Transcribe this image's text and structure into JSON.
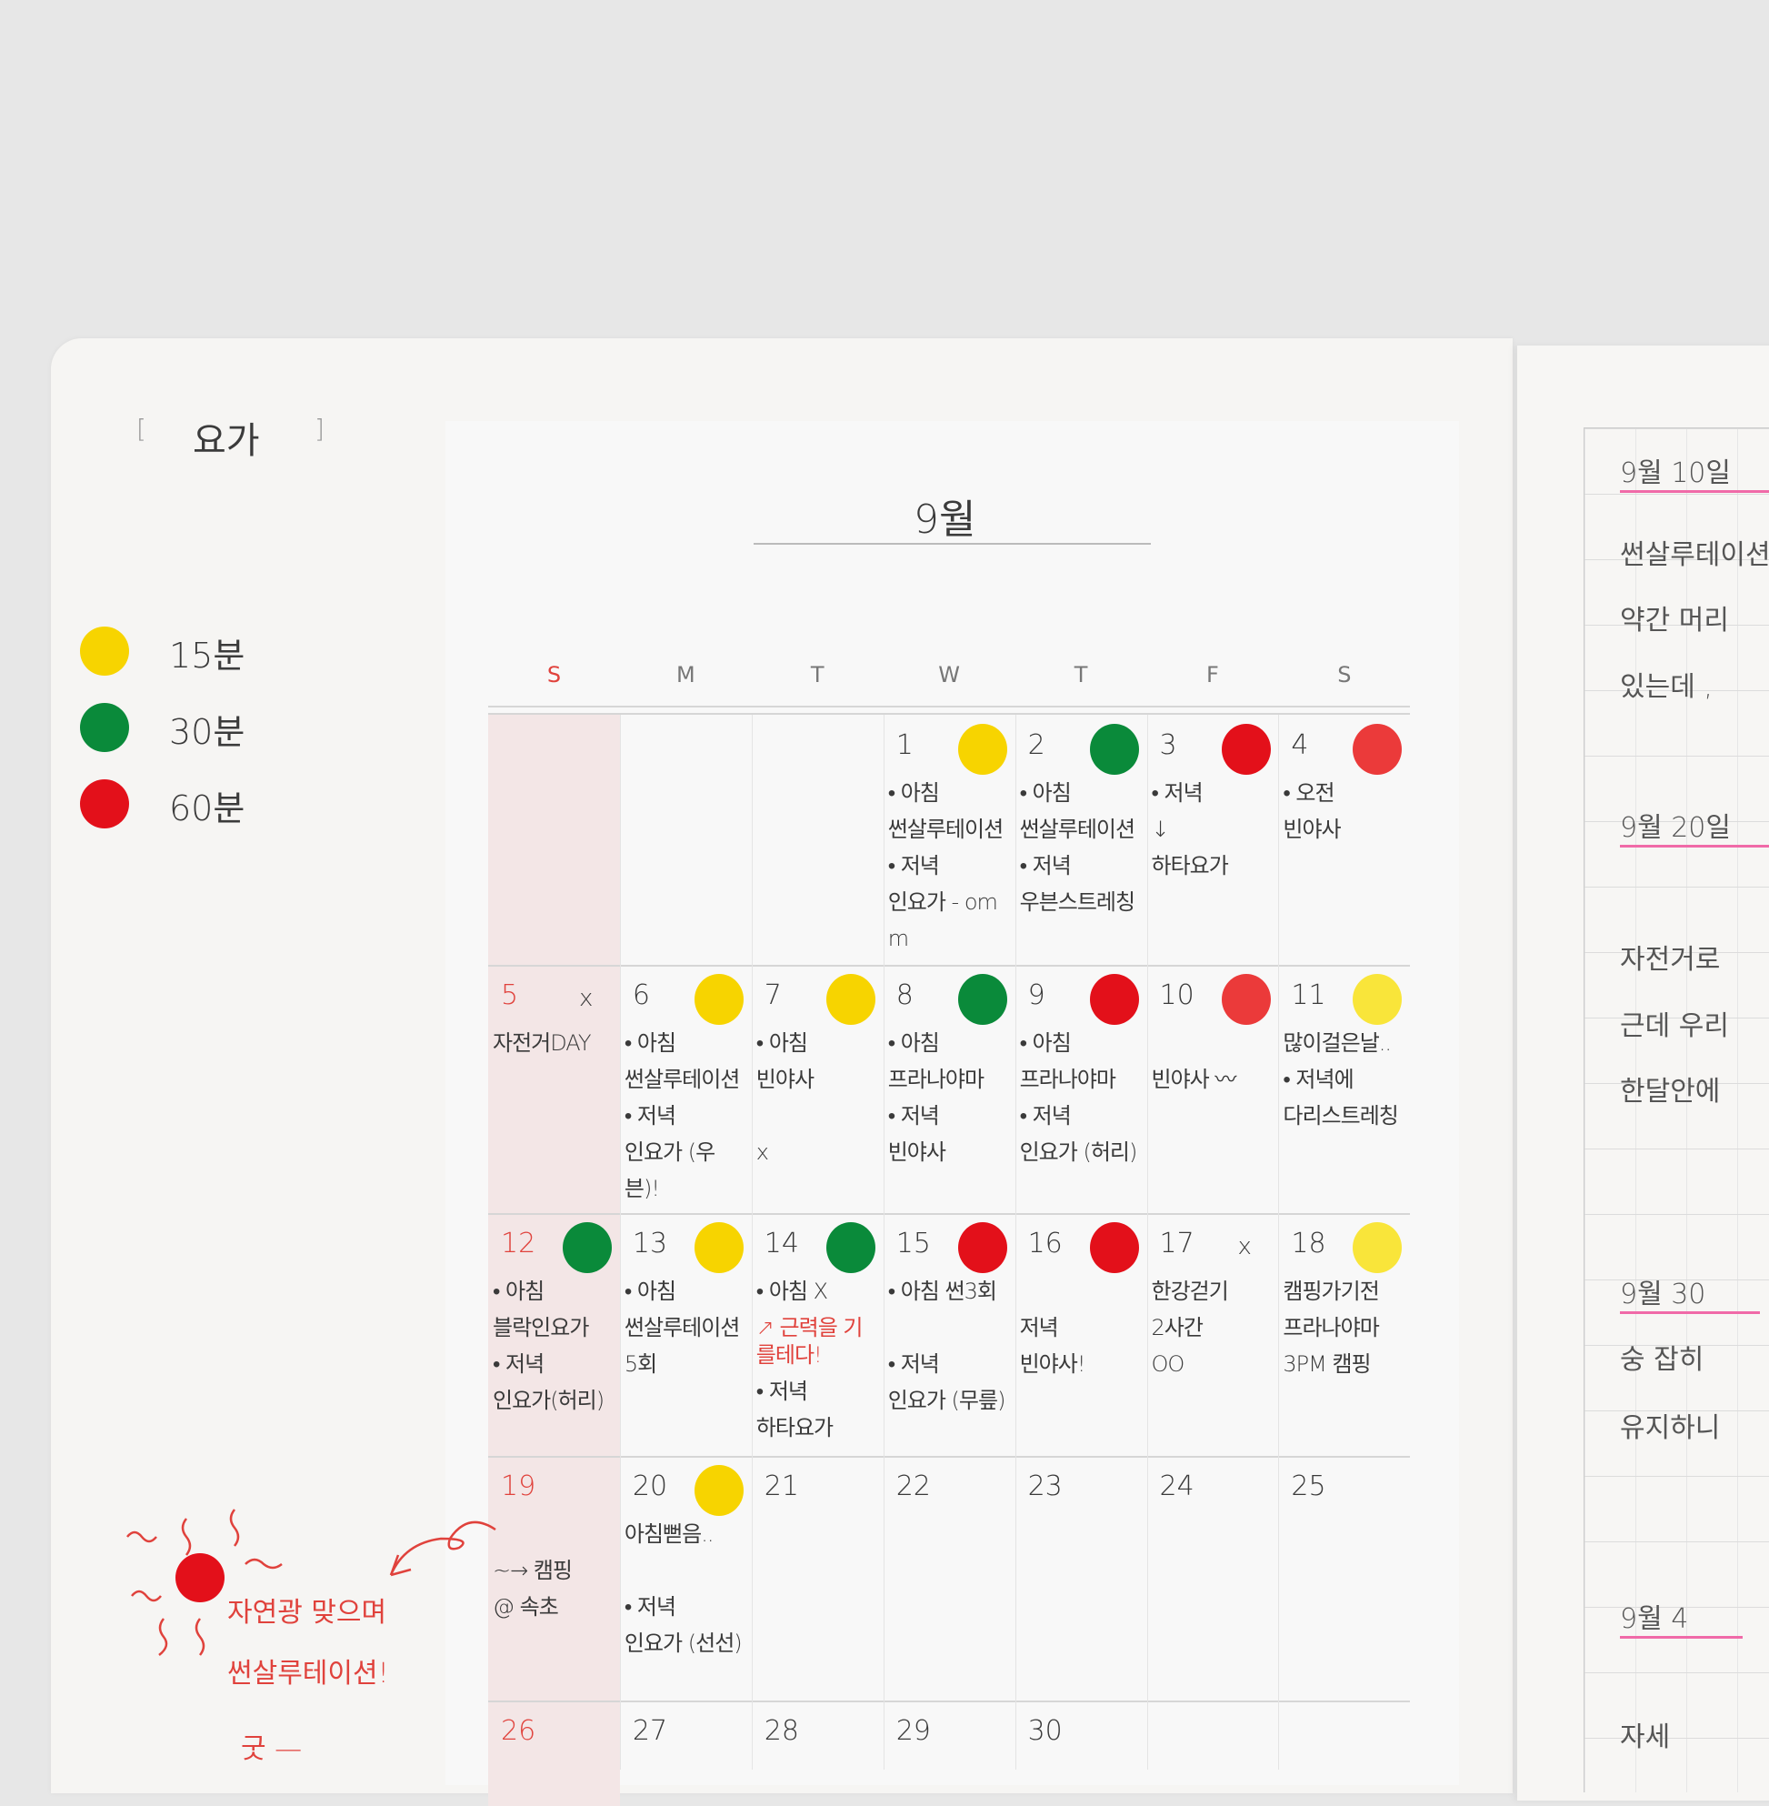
{
  "left_label": {
    "bracket_open": "[",
    "text": "요가",
    "bracket_close": "]"
  },
  "legend": [
    {
      "color": "#f7d400",
      "label": "15분"
    },
    {
      "color": "#0a8a3a",
      "label": "30분"
    },
    {
      "color": "#e3101a",
      "label": "60분"
    }
  ],
  "calendar": {
    "month_title": "9월",
    "weekdays": [
      "S",
      "M",
      "T",
      "W",
      "T",
      "F",
      "S"
    ],
    "weeks": [
      [
        {
          "day": ""
        },
        {
          "day": ""
        },
        {
          "day": ""
        },
        {
          "day": "1",
          "sticker": "#f7d400",
          "notes": [
            "• 아침",
            "썬살루테이션",
            "• 저녁",
            "인요가 - omm"
          ]
        },
        {
          "day": "2",
          "sticker": "#0a8a3a",
          "notes": [
            "• 아침",
            "썬살루테이션",
            "• 저녁",
            "우븐스트레칭"
          ]
        },
        {
          "day": "3",
          "sticker": "#e3101a",
          "notes": [
            "• 저녁",
            "↓",
            "하타요가"
          ]
        },
        {
          "day": "4",
          "sticker": "#eb3a3a",
          "notes": [
            "• 오전",
            "빈야사"
          ]
        }
      ],
      [
        {
          "day": "5",
          "mark": "x",
          "notes": [
            "자전거DAY"
          ]
        },
        {
          "day": "6",
          "sticker": "#f7d400",
          "notes": [
            "• 아침",
            "썬살루테이션",
            "• 저녁",
            "인요가 (우븐)!"
          ]
        },
        {
          "day": "7",
          "sticker": "#f7d400",
          "notes": [
            "• 아침",
            "빈야사",
            "",
            "x"
          ]
        },
        {
          "day": "8",
          "sticker": "#0a8a3a",
          "notes": [
            "• 아침",
            "프라나야마",
            "• 저녁",
            "빈야사"
          ]
        },
        {
          "day": "9",
          "sticker": "#e3101a",
          "notes": [
            "• 아침",
            "프라나야마",
            "• 저녁",
            "인요가 (허리)"
          ]
        },
        {
          "day": "10",
          "sticker": "#eb3a3a",
          "notes": [
            "",
            "빈야사 〰"
          ]
        },
        {
          "day": "11",
          "sticker": "#f9e53a",
          "notes": [
            "많이걸은날..",
            "• 저녁에",
            "다리스트레칭"
          ]
        }
      ],
      [
        {
          "day": "12",
          "sticker": "#0a8a3a",
          "notes": [
            "• 아침",
            "블락인요가",
            "• 저녁",
            "인요가(허리)"
          ]
        },
        {
          "day": "13",
          "sticker": "#f7d400",
          "notes": [
            "• 아침",
            "썬살루테이션",
            "5회"
          ]
        },
        {
          "day": "14",
          "sticker": "#0a8a3a",
          "notes": [
            "• 아침 X",
            "",
            "• 저녁",
            "하타요가"
          ],
          "red_note": "↗ 근력을 기를테다!"
        },
        {
          "day": "15",
          "sticker": "#e3101a",
          "notes": [
            "• 아침 썬3회",
            "",
            "• 저녁",
            "인요가 (무릎)"
          ]
        },
        {
          "day": "16",
          "sticker": "#e3101a",
          "notes": [
            "",
            "저녁",
            "빈야사!"
          ]
        },
        {
          "day": "17",
          "mark": "x",
          "notes": [
            "한강걷기",
            "2사간",
            "OO"
          ]
        },
        {
          "day": "18",
          "sticker": "#f9e53a",
          "notes": [
            "캠핑가기전",
            "프라나야마",
            "3PM 캠핑"
          ]
        }
      ],
      [
        {
          "day": "19",
          "notes": [
            "",
            "~→ 캠핑",
            "@ 속초"
          ]
        },
        {
          "day": "20",
          "sticker": "#f7d400",
          "notes": [
            "아침뻗음..",
            "",
            "• 저녁",
            "인요가 (선선)"
          ]
        },
        {
          "day": "21"
        },
        {
          "day": "22"
        },
        {
          "day": "23"
        },
        {
          "day": "24"
        },
        {
          "day": "25"
        }
      ],
      [
        {
          "day": "26"
        },
        {
          "day": "27"
        },
        {
          "day": "28"
        },
        {
          "day": "29"
        },
        {
          "day": "30"
        },
        {
          "day": ""
        },
        {
          "day": ""
        }
      ]
    ]
  },
  "annotation": {
    "line1": "자연광 맞으며",
    "line2": "썬살루테이션!",
    "line3": "굿 —",
    "sun_color": "#e3101a",
    "ink_color": "#e0423c"
  },
  "journal": [
    {
      "text": "9월 10일",
      "heading": true
    },
    {
      "text": "썬살루테이션"
    },
    {
      "text": "약간 머리"
    },
    {
      "text": "있는데 ,"
    },
    {
      "text": "9월 20일",
      "heading": true
    },
    {
      "text": "자전거로"
    },
    {
      "text": "근데 우리"
    },
    {
      "text": "한달안에"
    },
    {
      "text": "9월 30",
      "heading": true
    },
    {
      "text": "숭 잡히"
    },
    {
      "text": "유지하니"
    },
    {
      "text": "9월 4",
      "heading": true
    },
    {
      "text": "자세"
    }
  ]
}
